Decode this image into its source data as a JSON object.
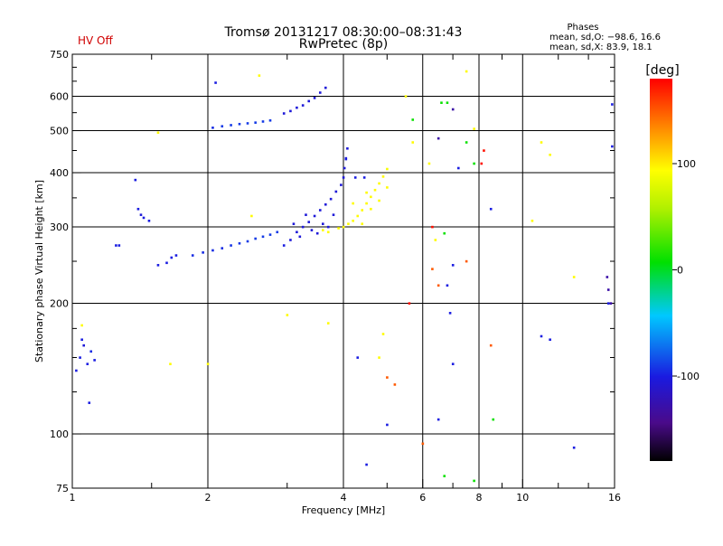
{
  "header": {
    "status": "HV Off",
    "title_line1": "Tromsø 20131217 08:30:00–08:31:43",
    "title_line2": "RwPretec (8p)",
    "phases_heading": "Phases",
    "phases_O": "mean, sd,O: −98.6, 16.6",
    "phases_X": "mean, sd,X:  83.9, 18.1"
  },
  "chart_data": {
    "type": "scatter",
    "title": "Tromsø 20131217 08:30:00–08:31:43",
    "subtitle": "RwPretec (8p)",
    "xlabel": "Frequency [MHz]",
    "ylabel": "Stationary phase Virtual Height [km]",
    "x_scale": "log",
    "y_scale": "log",
    "xlim": [
      1,
      16
    ],
    "ylim": [
      75,
      750
    ],
    "x_ticks": [
      1,
      2,
      4,
      6,
      8,
      10,
      16
    ],
    "y_ticks": [
      75,
      100,
      200,
      300,
      400,
      500,
      600,
      750
    ],
    "x_gridlines": [
      2,
      4,
      6,
      8,
      10
    ],
    "y_gridlines": [
      100,
      200,
      300,
      400,
      500,
      600
    ],
    "colorbar": {
      "label": "[deg]",
      "range": [
        -180,
        180
      ],
      "ticks": [
        100,
        0,
        -100
      ]
    },
    "series": [
      {
        "points": [
          {
            "x": 1.02,
            "y": 140,
            "p": -100
          },
          {
            "x": 1.04,
            "y": 150,
            "p": -100
          },
          {
            "x": 1.06,
            "y": 160,
            "p": -105
          },
          {
            "x": 1.08,
            "y": 145,
            "p": -100
          },
          {
            "x": 1.1,
            "y": 155,
            "p": -95
          },
          {
            "x": 1.12,
            "y": 148,
            "p": -100
          },
          {
            "x": 1.05,
            "y": 165,
            "p": -100
          },
          {
            "x": 1.09,
            "y": 118,
            "p": -100
          },
          {
            "x": 1.25,
            "y": 272,
            "p": -100
          },
          {
            "x": 1.27,
            "y": 272,
            "p": -100
          },
          {
            "x": 1.38,
            "y": 385,
            "p": -100
          },
          {
            "x": 1.4,
            "y": 330,
            "p": -100
          },
          {
            "x": 1.42,
            "y": 320,
            "p": -105
          },
          {
            "x": 1.44,
            "y": 315,
            "p": -100
          },
          {
            "x": 1.48,
            "y": 310,
            "p": -100
          },
          {
            "x": 1.55,
            "y": 245,
            "p": -100
          },
          {
            "x": 1.62,
            "y": 248,
            "p": -100
          },
          {
            "x": 1.66,
            "y": 255,
            "p": -100
          },
          {
            "x": 1.7,
            "y": 258,
            "p": -100
          },
          {
            "x": 1.85,
            "y": 258,
            "p": -95
          },
          {
            "x": 1.95,
            "y": 262,
            "p": -95
          },
          {
            "x": 2.05,
            "y": 265,
            "p": -95
          },
          {
            "x": 2.15,
            "y": 268,
            "p": -95
          },
          {
            "x": 2.25,
            "y": 272,
            "p": -92
          },
          {
            "x": 2.35,
            "y": 275,
            "p": -92
          },
          {
            "x": 2.45,
            "y": 278,
            "p": -90
          },
          {
            "x": 2.55,
            "y": 282,
            "p": -90
          },
          {
            "x": 2.65,
            "y": 285,
            "p": -90
          },
          {
            "x": 2.75,
            "y": 288,
            "p": -90
          },
          {
            "x": 2.85,
            "y": 292,
            "p": -90
          },
          {
            "x": 2.95,
            "y": 272,
            "p": -100
          },
          {
            "x": 3.05,
            "y": 280,
            "p": -105
          },
          {
            "x": 3.15,
            "y": 292,
            "p": -105
          },
          {
            "x": 3.25,
            "y": 300,
            "p": -105
          },
          {
            "x": 3.35,
            "y": 308,
            "p": -105
          },
          {
            "x": 3.45,
            "y": 318,
            "p": -105
          },
          {
            "x": 3.55,
            "y": 328,
            "p": -105
          },
          {
            "x": 3.65,
            "y": 338,
            "p": -105
          },
          {
            "x": 3.75,
            "y": 348,
            "p": -105
          },
          {
            "x": 3.85,
            "y": 362,
            "p": -105
          },
          {
            "x": 3.95,
            "y": 375,
            "p": -105
          },
          {
            "x": 4.0,
            "y": 390,
            "p": -105
          },
          {
            "x": 4.02,
            "y": 410,
            "p": -105
          },
          {
            "x": 4.05,
            "y": 432,
            "p": -105
          },
          {
            "x": 4.08,
            "y": 455,
            "p": -105
          },
          {
            "x": 3.2,
            "y": 285,
            "p": -105
          },
          {
            "x": 3.4,
            "y": 295,
            "p": -105
          },
          {
            "x": 3.6,
            "y": 305,
            "p": -105
          },
          {
            "x": 3.8,
            "y": 320,
            "p": -105
          },
          {
            "x": 3.1,
            "y": 305,
            "p": -105
          },
          {
            "x": 3.3,
            "y": 320,
            "p": -105
          },
          {
            "x": 3.5,
            "y": 290,
            "p": -105
          },
          {
            "x": 3.7,
            "y": 300,
            "p": -105
          },
          {
            "x": 2.05,
            "y": 508,
            "p": -95
          },
          {
            "x": 2.15,
            "y": 512,
            "p": -90
          },
          {
            "x": 2.25,
            "y": 515,
            "p": -90
          },
          {
            "x": 2.35,
            "y": 518,
            "p": -90
          },
          {
            "x": 2.45,
            "y": 520,
            "p": -90
          },
          {
            "x": 2.55,
            "y": 522,
            "p": -90
          },
          {
            "x": 2.65,
            "y": 525,
            "p": -90
          },
          {
            "x": 2.75,
            "y": 528,
            "p": -90
          },
          {
            "x": 2.95,
            "y": 548,
            "p": -105
          },
          {
            "x": 3.05,
            "y": 555,
            "p": -105
          },
          {
            "x": 3.15,
            "y": 565,
            "p": -105
          },
          {
            "x": 3.25,
            "y": 572,
            "p": -105
          },
          {
            "x": 3.35,
            "y": 585,
            "p": -105
          },
          {
            "x": 3.45,
            "y": 595,
            "p": -105
          },
          {
            "x": 3.55,
            "y": 612,
            "p": -105
          },
          {
            "x": 3.65,
            "y": 628,
            "p": -105
          },
          {
            "x": 2.08,
            "y": 645,
            "p": -100
          },
          {
            "x": 4.05,
            "y": 430,
            "p": -100
          },
          {
            "x": 4.25,
            "y": 390,
            "p": -100
          },
          {
            "x": 4.45,
            "y": 390,
            "p": -100
          },
          {
            "x": 5.0,
            "y": 105,
            "p": -100
          },
          {
            "x": 6.5,
            "y": 108,
            "p": -100
          },
          {
            "x": 7.0,
            "y": 145,
            "p": -100
          },
          {
            "x": 7.0,
            "y": 245,
            "p": -100
          },
          {
            "x": 7.2,
            "y": 410,
            "p": -100
          },
          {
            "x": 6.8,
            "y": 220,
            "p": -100
          },
          {
            "x": 6.9,
            "y": 190,
            "p": -100
          },
          {
            "x": 11.0,
            "y": 168,
            "p": -100
          },
          {
            "x": 11.5,
            "y": 165,
            "p": -100
          },
          {
            "x": 13.0,
            "y": 93,
            "p": -100
          },
          {
            "x": 15.5,
            "y": 200,
            "p": -100
          },
          {
            "x": 15.8,
            "y": 575,
            "p": -100
          },
          {
            "x": 15.8,
            "y": 460,
            "p": -100
          },
          {
            "x": 4.3,
            "y": 150,
            "p": -100
          },
          {
            "x": 4.5,
            "y": 85,
            "p": -100
          },
          {
            "x": 8.5,
            "y": 330,
            "p": -100
          },
          {
            "x": 4.1,
            "y": 305,
            "p": 95
          },
          {
            "x": 4.2,
            "y": 310,
            "p": 95
          },
          {
            "x": 4.3,
            "y": 318,
            "p": 95
          },
          {
            "x": 4.4,
            "y": 328,
            "p": 95
          },
          {
            "x": 4.5,
            "y": 340,
            "p": 95
          },
          {
            "x": 4.6,
            "y": 352,
            "p": 95
          },
          {
            "x": 4.7,
            "y": 365,
            "p": 95
          },
          {
            "x": 4.8,
            "y": 378,
            "p": 95
          },
          {
            "x": 4.9,
            "y": 392,
            "p": 95
          },
          {
            "x": 5.0,
            "y": 408,
            "p": 90
          },
          {
            "x": 4.0,
            "y": 300,
            "p": 95
          },
          {
            "x": 3.9,
            "y": 298,
            "p": 95
          },
          {
            "x": 3.7,
            "y": 292,
            "p": 95
          },
          {
            "x": 3.6,
            "y": 295,
            "p": 95
          },
          {
            "x": 4.4,
            "y": 305,
            "p": 95
          },
          {
            "x": 4.6,
            "y": 330,
            "p": 95
          },
          {
            "x": 4.8,
            "y": 345,
            "p": 95
          },
          {
            "x": 5.0,
            "y": 370,
            "p": 95
          },
          {
            "x": 4.2,
            "y": 340,
            "p": 95
          },
          {
            "x": 4.5,
            "y": 360,
            "p": 95
          },
          {
            "x": 1.05,
            "y": 178,
            "p": 95
          },
          {
            "x": 1.55,
            "y": 495,
            "p": 95
          },
          {
            "x": 1.65,
            "y": 145,
            "p": 95
          },
          {
            "x": 2.0,
            "y": 145,
            "p": 95
          },
          {
            "x": 2.5,
            "y": 318,
            "p": 95
          },
          {
            "x": 2.6,
            "y": 670,
            "p": 95
          },
          {
            "x": 3.0,
            "y": 188,
            "p": 95
          },
          {
            "x": 3.7,
            "y": 180,
            "p": 95
          },
          {
            "x": 4.8,
            "y": 150,
            "p": 95
          },
          {
            "x": 4.9,
            "y": 170,
            "p": 95
          },
          {
            "x": 5.5,
            "y": 600,
            "p": 95
          },
          {
            "x": 5.7,
            "y": 470,
            "p": 95
          },
          {
            "x": 6.2,
            "y": 420,
            "p": 95
          },
          {
            "x": 6.4,
            "y": 280,
            "p": 95
          },
          {
            "x": 7.5,
            "y": 685,
            "p": 95
          },
          {
            "x": 10.5,
            "y": 310,
            "p": 95
          },
          {
            "x": 11.0,
            "y": 470,
            "p": 95
          },
          {
            "x": 11.5,
            "y": 440,
            "p": 95
          },
          {
            "x": 13.0,
            "y": 230,
            "p": 95
          },
          {
            "x": 7.8,
            "y": 505,
            "p": 95
          },
          {
            "x": 5.0,
            "y": 135,
            "p": 150
          },
          {
            "x": 5.2,
            "y": 130,
            "p": 150
          },
          {
            "x": 6.0,
            "y": 95,
            "p": 150
          },
          {
            "x": 6.3,
            "y": 240,
            "p": 150
          },
          {
            "x": 6.5,
            "y": 220,
            "p": 150
          },
          {
            "x": 7.5,
            "y": 250,
            "p": 150
          },
          {
            "x": 8.5,
            "y": 160,
            "p": 150
          },
          {
            "x": 5.6,
            "y": 200,
            "p": 175
          },
          {
            "x": 6.3,
            "y": 300,
            "p": 175
          },
          {
            "x": 8.2,
            "y": 450,
            "p": 175
          },
          {
            "x": 8.1,
            "y": 420,
            "p": 175
          },
          {
            "x": 6.6,
            "y": 580,
            "p": 10
          },
          {
            "x": 6.7,
            "y": 80,
            "p": 10
          },
          {
            "x": 7.8,
            "y": 78,
            "p": 10
          },
          {
            "x": 7.8,
            "y": 420,
            "p": 10
          },
          {
            "x": 6.8,
            "y": 580,
            "p": 10
          },
          {
            "x": 8.6,
            "y": 108,
            "p": 10
          },
          {
            "x": 6.7,
            "y": 290,
            "p": 10
          },
          {
            "x": 5.7,
            "y": 530,
            "p": 10
          },
          {
            "x": 7.5,
            "y": 470,
            "p": 10
          },
          {
            "x": 15.4,
            "y": 230,
            "p": -130
          },
          {
            "x": 15.5,
            "y": 215,
            "p": -130
          },
          {
            "x": 15.7,
            "y": 200,
            "p": -130
          },
          {
            "x": 6.5,
            "y": 480,
            "p": -130
          },
          {
            "x": 7.0,
            "y": 560,
            "p": -130
          }
        ]
      }
    ]
  }
}
